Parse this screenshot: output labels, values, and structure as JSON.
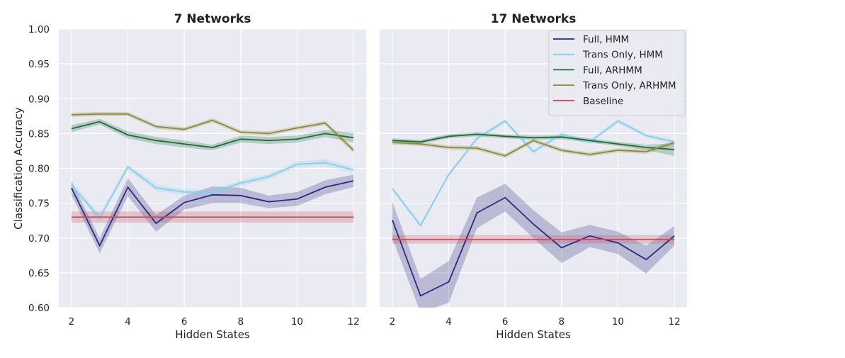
{
  "chart_data": [
    {
      "type": "line",
      "title": "7 Networks",
      "xlabel": "Hidden States",
      "ylabel": "Classification Accuracy",
      "x": [
        2,
        3,
        4,
        5,
        6,
        7,
        8,
        9,
        10,
        11,
        12
      ],
      "xlim": [
        1.55,
        12.45
      ],
      "ylim": [
        0.6,
        1.0
      ],
      "xticks": [
        "2",
        "4",
        "6",
        "8",
        "10",
        "12"
      ],
      "yticks": [
        "0.60",
        "0.65",
        "0.70",
        "0.75",
        "0.80",
        "0.85",
        "0.90",
        "0.95",
        "1.00"
      ],
      "grid": true,
      "series": [
        {
          "name": "Full, HMM",
          "color": "#2a2a7f",
          "values": [
            0.772,
            0.689,
            0.773,
            0.721,
            0.751,
            0.762,
            0.761,
            0.752,
            0.756,
            0.773,
            0.782
          ],
          "ci": [
            [
              0.762,
              0.782
            ],
            [
              0.678,
              0.7
            ],
            [
              0.76,
              0.786
            ],
            [
              0.709,
              0.733
            ],
            [
              0.741,
              0.761
            ],
            [
              0.75,
              0.774
            ],
            [
              0.75,
              0.772
            ],
            [
              0.743,
              0.761
            ],
            [
              0.746,
              0.766
            ],
            [
              0.763,
              0.783
            ],
            [
              0.773,
              0.791
            ]
          ]
        },
        {
          "name": "Trans Only, HMM",
          "color": "#87ceeb",
          "values": [
            0.776,
            0.729,
            0.802,
            0.772,
            0.766,
            0.765,
            0.779,
            0.788,
            0.806,
            0.808,
            0.798
          ],
          "ci": [
            [
              0.771,
              0.781
            ],
            [
              0.724,
              0.734
            ],
            [
              0.798,
              0.806
            ],
            [
              0.767,
              0.777
            ],
            [
              0.762,
              0.77
            ],
            [
              0.761,
              0.769
            ],
            [
              0.775,
              0.783
            ],
            [
              0.784,
              0.792
            ],
            [
              0.802,
              0.81
            ],
            [
              0.803,
              0.813
            ],
            [
              0.794,
              0.802
            ]
          ]
        },
        {
          "name": "Full, ARHMM",
          "color": "#1e6b3a",
          "values": [
            0.857,
            0.867,
            0.848,
            0.84,
            0.835,
            0.83,
            0.842,
            0.84,
            0.842,
            0.85,
            0.844
          ],
          "ci": [
            [
              0.852,
              0.862
            ],
            [
              0.863,
              0.871
            ],
            [
              0.843,
              0.853
            ],
            [
              0.835,
              0.845
            ],
            [
              0.83,
              0.84
            ],
            [
              0.826,
              0.834
            ],
            [
              0.837,
              0.847
            ],
            [
              0.835,
              0.845
            ],
            [
              0.837,
              0.847
            ],
            [
              0.845,
              0.855
            ],
            [
              0.837,
              0.851
            ]
          ]
        },
        {
          "name": "Trans Only, ARHMM",
          "color": "#8b8b3a",
          "values": [
            0.877,
            0.878,
            0.878,
            0.86,
            0.856,
            0.869,
            0.852,
            0.85,
            0.858,
            0.865,
            0.826
          ],
          "ci": [
            [
              0.874,
              0.88
            ],
            [
              0.875,
              0.881
            ],
            [
              0.875,
              0.881
            ],
            [
              0.857,
              0.863
            ],
            [
              0.853,
              0.859
            ],
            [
              0.866,
              0.872
            ],
            [
              0.849,
              0.855
            ],
            [
              0.847,
              0.853
            ],
            [
              0.855,
              0.861
            ],
            [
              0.862,
              0.868
            ],
            [
              0.822,
              0.83
            ]
          ]
        },
        {
          "name": "Baseline",
          "color": "#c44e60",
          "values": [
            0.73,
            0.73,
            0.73,
            0.73,
            0.73,
            0.73,
            0.73,
            0.73,
            0.73,
            0.73,
            0.73
          ],
          "ci": [
            [
              0.722,
              0.738
            ],
            [
              0.722,
              0.738
            ],
            [
              0.722,
              0.738
            ],
            [
              0.722,
              0.738
            ],
            [
              0.722,
              0.738
            ],
            [
              0.722,
              0.738
            ],
            [
              0.722,
              0.738
            ],
            [
              0.722,
              0.738
            ],
            [
              0.722,
              0.738
            ],
            [
              0.722,
              0.738
            ],
            [
              0.722,
              0.738
            ]
          ]
        }
      ]
    },
    {
      "type": "line",
      "title": "17 Networks",
      "xlabel": "Hidden States",
      "ylabel": "",
      "x": [
        2,
        3,
        4,
        5,
        6,
        7,
        8,
        9,
        10,
        11,
        12
      ],
      "xlim": [
        1.55,
        12.45
      ],
      "ylim": [
        0.6,
        1.0
      ],
      "xticks": [
        "2",
        "4",
        "6",
        "8",
        "10",
        "12"
      ],
      "grid": true,
      "legend": "top-right",
      "series": [
        {
          "name": "Full, HMM",
          "color": "#2a2a7f",
          "values": [
            0.726,
            0.617,
            0.637,
            0.736,
            0.758,
            0.72,
            0.686,
            0.703,
            0.693,
            0.669,
            0.703
          ],
          "ci": [
            [
              0.7,
              0.752
            ],
            [
              0.593,
              0.641
            ],
            [
              0.607,
              0.667
            ],
            [
              0.714,
              0.758
            ],
            [
              0.738,
              0.778
            ],
            [
              0.7,
              0.74
            ],
            [
              0.664,
              0.708
            ],
            [
              0.687,
              0.719
            ],
            [
              0.677,
              0.709
            ],
            [
              0.649,
              0.689
            ],
            [
              0.689,
              0.717
            ]
          ]
        },
        {
          "name": "Trans Only, HMM",
          "color": "#87ceeb",
          "values": [
            0.771,
            0.718,
            0.791,
            0.843,
            0.868,
            0.824,
            0.849,
            0.838,
            0.868,
            0.847,
            0.838
          ],
          "ci": [
            [
              0.768,
              0.774
            ],
            [
              0.715,
              0.721
            ],
            [
              0.788,
              0.794
            ],
            [
              0.84,
              0.846
            ],
            [
              0.865,
              0.871
            ],
            [
              0.821,
              0.827
            ],
            [
              0.846,
              0.852
            ],
            [
              0.835,
              0.841
            ],
            [
              0.865,
              0.871
            ],
            [
              0.844,
              0.85
            ],
            [
              0.835,
              0.841
            ]
          ]
        },
        {
          "name": "Full, ARHMM",
          "color": "#1e6b3a",
          "values": [
            0.84,
            0.838,
            0.846,
            0.849,
            0.846,
            0.844,
            0.845,
            0.84,
            0.835,
            0.83,
            0.827
          ],
          "ci": [
            [
              0.837,
              0.843
            ],
            [
              0.835,
              0.841
            ],
            [
              0.843,
              0.849
            ],
            [
              0.846,
              0.852
            ],
            [
              0.843,
              0.849
            ],
            [
              0.841,
              0.847
            ],
            [
              0.842,
              0.848
            ],
            [
              0.837,
              0.843
            ],
            [
              0.832,
              0.838
            ],
            [
              0.826,
              0.834
            ],
            [
              0.818,
              0.836
            ]
          ]
        },
        {
          "name": "Trans Only, ARHMM",
          "color": "#8b8b3a",
          "values": [
            0.837,
            0.835,
            0.83,
            0.829,
            0.818,
            0.84,
            0.826,
            0.82,
            0.826,
            0.824,
            0.837
          ],
          "ci": [
            [
              0.834,
              0.84
            ],
            [
              0.832,
              0.838
            ],
            [
              0.827,
              0.833
            ],
            [
              0.826,
              0.832
            ],
            [
              0.815,
              0.821
            ],
            [
              0.837,
              0.843
            ],
            [
              0.823,
              0.829
            ],
            [
              0.817,
              0.823
            ],
            [
              0.823,
              0.829
            ],
            [
              0.821,
              0.827
            ],
            [
              0.834,
              0.84
            ]
          ]
        },
        {
          "name": "Baseline",
          "color": "#c44e60",
          "values": [
            0.698,
            0.698,
            0.698,
            0.698,
            0.698,
            0.698,
            0.698,
            0.698,
            0.698,
            0.698,
            0.698
          ],
          "ci": [
            [
              0.692,
              0.704
            ],
            [
              0.692,
              0.704
            ],
            [
              0.692,
              0.704
            ],
            [
              0.692,
              0.704
            ],
            [
              0.692,
              0.704
            ],
            [
              0.692,
              0.704
            ],
            [
              0.692,
              0.704
            ],
            [
              0.692,
              0.704
            ],
            [
              0.692,
              0.704
            ],
            [
              0.692,
              0.704
            ],
            [
              0.692,
              0.704
            ]
          ]
        }
      ]
    }
  ]
}
